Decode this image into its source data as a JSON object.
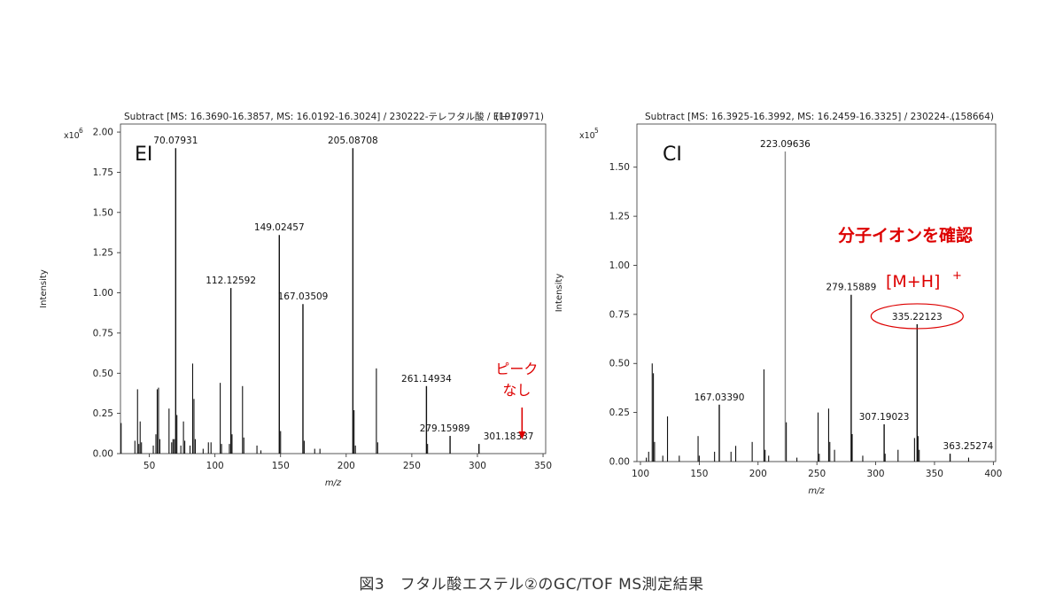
{
  "caption": "図3　フタル酸エステル②のGC/TOF MS測定結果",
  "colors": {
    "axis": "#222222",
    "peak": "#111111",
    "highlight": "#dd0000",
    "frame": "#333333"
  },
  "chart_data": [
    {
      "type": "bar",
      "title": "Subtract [MS: 16.3690-16.3857, MS: 16.0192-16.3024] / 230222-テレフタル酸 / EI+ / /",
      "title_count": "(1910971)",
      "label": "EI",
      "xlabel": "m/z",
      "ylabel": "Intensity",
      "y_multiplier": "x10",
      "y_exponent": "6",
      "xlim": [
        28,
        352
      ],
      "ylim": [
        0,
        2.05
      ],
      "xticks": [
        50,
        100,
        150,
        200,
        250,
        300,
        350
      ],
      "yticks": [
        0.0,
        0.25,
        0.5,
        0.75,
        1.0,
        1.25,
        1.5,
        1.75,
        2.0
      ],
      "ytick_labels": [
        "0.00",
        "0.25",
        "0.50",
        "0.75",
        "1.00",
        "1.25",
        "1.50",
        "1.75",
        "2.00"
      ],
      "peaks": [
        {
          "x": 28.5,
          "y": 0.19
        },
        {
          "x": 39,
          "y": 0.08
        },
        {
          "x": 41,
          "y": 0.4
        },
        {
          "x": 42,
          "y": 0.06
        },
        {
          "x": 43,
          "y": 0.2
        },
        {
          "x": 44,
          "y": 0.07
        },
        {
          "x": 53,
          "y": 0.05
        },
        {
          "x": 55,
          "y": 0.12
        },
        {
          "x": 56,
          "y": 0.4
        },
        {
          "x": 57,
          "y": 0.41
        },
        {
          "x": 58,
          "y": 0.09
        },
        {
          "x": 65,
          "y": 0.28
        },
        {
          "x": 67,
          "y": 0.07
        },
        {
          "x": 68,
          "y": 0.09
        },
        {
          "x": 69,
          "y": 0.09
        },
        {
          "x": 70.07931,
          "y": 1.9,
          "label": "70.07931"
        },
        {
          "x": 71,
          "y": 0.24
        },
        {
          "x": 74,
          "y": 0.05
        },
        {
          "x": 76,
          "y": 0.2
        },
        {
          "x": 77,
          "y": 0.08
        },
        {
          "x": 81,
          "y": 0.05
        },
        {
          "x": 83,
          "y": 0.56
        },
        {
          "x": 84,
          "y": 0.34
        },
        {
          "x": 85,
          "y": 0.09
        },
        {
          "x": 91,
          "y": 0.03
        },
        {
          "x": 95,
          "y": 0.07
        },
        {
          "x": 97,
          "y": 0.07
        },
        {
          "x": 104,
          "y": 0.44
        },
        {
          "x": 105,
          "y": 0.06
        },
        {
          "x": 111,
          "y": 0.06
        },
        {
          "x": 112.12592,
          "y": 1.03,
          "label": "112.12592"
        },
        {
          "x": 113,
          "y": 0.12
        },
        {
          "x": 121,
          "y": 0.42
        },
        {
          "x": 122,
          "y": 0.1
        },
        {
          "x": 132,
          "y": 0.05
        },
        {
          "x": 135,
          "y": 0.02
        },
        {
          "x": 149.02457,
          "y": 1.36,
          "label": "149.02457"
        },
        {
          "x": 150,
          "y": 0.14
        },
        {
          "x": 167.03509,
          "y": 0.93,
          "label": "167.03509"
        },
        {
          "x": 168,
          "y": 0.08
        },
        {
          "x": 176,
          "y": 0.03
        },
        {
          "x": 180,
          "y": 0.03
        },
        {
          "x": 205.08708,
          "y": 1.9,
          "label": "205.08708"
        },
        {
          "x": 206,
          "y": 0.27
        },
        {
          "x": 207,
          "y": 0.05
        },
        {
          "x": 223,
          "y": 0.53
        },
        {
          "x": 224,
          "y": 0.07
        },
        {
          "x": 261.14934,
          "y": 0.42,
          "label": "261.14934"
        },
        {
          "x": 262,
          "y": 0.06
        },
        {
          "x": 279.15989,
          "y": 0.11,
          "label": "279.15989"
        },
        {
          "x": 301.18337,
          "y": 0.06,
          "label": "301.18337"
        }
      ],
      "annotation_line1": "ピーク",
      "annotation_line2": "なし"
    },
    {
      "type": "bar",
      "title": "Subtract [MS: 16.3925-16.3992, MS: 16.2459-16.3325] / 230224-...",
      "title_count": "(158664)",
      "label": "CI",
      "xlabel": "m/z",
      "ylabel": "Intensity",
      "y_multiplier": "x10",
      "y_exponent": "5",
      "xlim": [
        97,
        402
      ],
      "ylim": [
        0,
        1.72
      ],
      "xticks": [
        100,
        150,
        200,
        250,
        300,
        350,
        400
      ],
      "yticks": [
        0.0,
        0.25,
        0.5,
        0.75,
        1.0,
        1.25,
        1.5
      ],
      "ytick_labels": [
        "0.00",
        "0.25",
        "0.50",
        "0.75",
        "1.00",
        "1.25",
        "1.50"
      ],
      "peaks": [
        {
          "x": 105,
          "y": 0.02
        },
        {
          "x": 107,
          "y": 0.05
        },
        {
          "x": 110,
          "y": 0.5
        },
        {
          "x": 111,
          "y": 0.45
        },
        {
          "x": 112,
          "y": 0.1
        },
        {
          "x": 119,
          "y": 0.03
        },
        {
          "x": 123,
          "y": 0.23
        },
        {
          "x": 133,
          "y": 0.03
        },
        {
          "x": 149,
          "y": 0.13
        },
        {
          "x": 150,
          "y": 0.03
        },
        {
          "x": 163,
          "y": 0.05
        },
        {
          "x": 167.0339,
          "y": 0.29,
          "label": "167.03390"
        },
        {
          "x": 177,
          "y": 0.05
        },
        {
          "x": 181,
          "y": 0.08
        },
        {
          "x": 195,
          "y": 0.1
        },
        {
          "x": 205,
          "y": 0.47
        },
        {
          "x": 206,
          "y": 0.06
        },
        {
          "x": 209,
          "y": 0.03
        },
        {
          "x": 223.09636,
          "y": 1.58,
          "label": "223.09636"
        },
        {
          "x": 224,
          "y": 0.2
        },
        {
          "x": 233,
          "y": 0.02
        },
        {
          "x": 251,
          "y": 0.25
        },
        {
          "x": 252,
          "y": 0.04
        },
        {
          "x": 260,
          "y": 0.27
        },
        {
          "x": 261,
          "y": 0.1
        },
        {
          "x": 265,
          "y": 0.06
        },
        {
          "x": 279.15889,
          "y": 0.85,
          "label": "279.15889"
        },
        {
          "x": 280,
          "y": 0.14
        },
        {
          "x": 289,
          "y": 0.03
        },
        {
          "x": 307.19023,
          "y": 0.19,
          "label": "307.19023"
        },
        {
          "x": 308,
          "y": 0.04
        },
        {
          "x": 319,
          "y": 0.06
        },
        {
          "x": 333,
          "y": 0.12
        },
        {
          "x": 335.22123,
          "y": 0.7,
          "label": "335.22123"
        },
        {
          "x": 336,
          "y": 0.13
        },
        {
          "x": 337,
          "y": 0.06
        },
        {
          "x": 363.25274,
          "y": 0.04,
          "label": "363.25274"
        },
        {
          "x": 379,
          "y": 0.02
        }
      ],
      "annotation_main": "分子イオンを確認",
      "ion_label": "[M+H]",
      "ion_sup": "+"
    }
  ]
}
